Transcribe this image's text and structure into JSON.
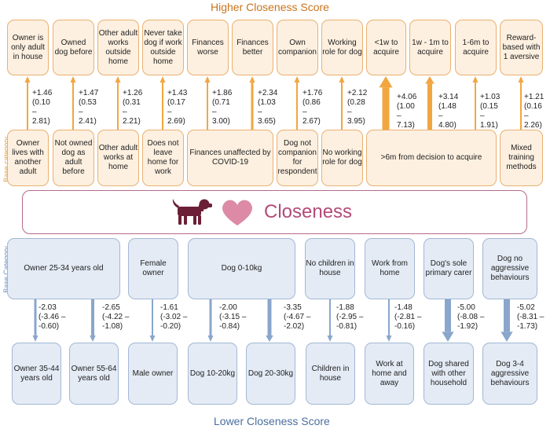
{
  "headings": {
    "higher": "Higher Closeness Score",
    "lower": "Lower Closeness Score"
  },
  "side_labels": {
    "base_top": "Base category",
    "base_bottom": "Base Category"
  },
  "center": {
    "title": "Closeness",
    "dog_icon": "dog-icon",
    "heart_icon": "heart-icon"
  },
  "colors": {
    "orange_text": "#c8741e",
    "orange_arrow": "#f2a640",
    "blue_arrow": "#8aa6cc",
    "blue_text": "#5f86b8",
    "pink": "#b34b79",
    "dog": "#6b2037",
    "heart": "#dc8aa5"
  },
  "top_comparisons": [
    "Owner is only adult in house",
    "Owned dog before",
    "Other adult works outside home",
    "Never take dog if work outside home",
    "Finances worse",
    "Finances better",
    "Own companion",
    "Working role for dog",
    "<1w to acquire",
    "1w - 1m to acquire",
    "1-6m to acquire",
    "Reward-based with 1 aversive"
  ],
  "top_bases": [
    "Owner lives with another adult",
    "Not owned dog as adult before",
    "Other adult works at home",
    "Does not leave home for work",
    "Finances unaffected by COVID-19",
    "Dog not companion for respondent",
    "No working role for dog",
    ">6m from decision to acquire",
    "Mixed training methods"
  ],
  "top_stats": [
    "+1.46 (0.10 – 2.81)",
    "+1.47 (0.53 – 2.41)",
    "+1.26 (0.31 – 2.21)",
    "+1.43 (0.17 – 2.69)",
    "+1.86 (0.71 – 3.00)",
    "+2.34 (1.03 – 3.65)",
    "+1.76 (0.86 – 2.67)",
    "+2.12 (0.28 – 3.95)",
    "+4.06 (1.00 – 7.13)",
    "+3.14 (1.48 – 4.80)",
    "+1.03 (0.15 – 1.91)",
    "+1.21 (0.16 – 2.26)"
  ],
  "bottom_bases": [
    "Owner 25-34 years old",
    "Female owner",
    "Dog 0-10kg",
    "No children in house",
    "Work from home",
    "Dog's sole primary carer",
    "Dog no aggressive behaviours"
  ],
  "bottom_comparisons": [
    "Owner 35-44 years old",
    "Owner 55-64 years old",
    "Male owner",
    "Dog 10-20kg",
    "Dog 20-30kg",
    "Children in house",
    "Work at home and away",
    "Dog shared with other household",
    "Dog 3-4 aggressive behaviours"
  ],
  "bottom_stats": [
    "-2.03 (-3.46 – -0.60)",
    "-2.65 (-4.22 – -1.08)",
    "-1.61 (-3.02 – -0.20)",
    "-2.00 (-3.15 – -0.84)",
    "-3.35 (-4.67 – -2.02)",
    "-1.88 (-2.95 – -0.81)",
    "-1.48 (-2.81 – -0.16)",
    "-5.00 (-8.08 – -1.92)",
    "-5.02 (-8.31 – -1.73)"
  ]
}
